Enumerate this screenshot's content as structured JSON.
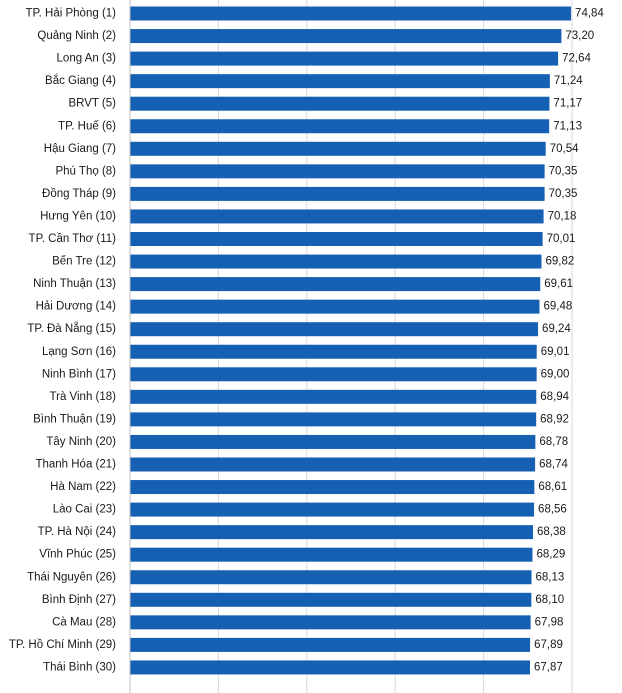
{
  "chart_data": {
    "type": "bar",
    "orientation": "horizontal",
    "bar_color": "#1660b4",
    "gridline_color": "#d9d9d9",
    "xlim": [
      0,
      80
    ],
    "grid": true,
    "categories": [
      "TP. Hải Phòng (1)",
      "Quảng Ninh (2)",
      "Long An (3)",
      "Bắc Giang (4)",
      "BRVT (5)",
      "TP. Huế (6)",
      "Hậu Giang (7)",
      "Phú Thọ (8)",
      "Đồng Tháp (9)",
      "Hưng Yên (10)",
      "TP. Cần Thơ (11)",
      "Bến Tre (12)",
      "Ninh Thuận (13)",
      "Hải Dương (14)",
      "TP. Đà Nẵng (15)",
      "Lạng Sơn (16)",
      "Ninh Bình (17)",
      "Trà Vinh (18)",
      "Bình Thuận (19)",
      "Tây Ninh (20)",
      "Thanh Hóa (21)",
      "Hà Nam (22)",
      "Lào Cai (23)",
      "TP. Hà Nội (24)",
      "Vĩnh Phúc (25)",
      "Thái Nguyên (26)",
      "Bình Định (27)",
      "Cà Mau (28)",
      "TP. Hồ Chí Minh (29)",
      "Thái Bình (30)"
    ],
    "values": [
      74.84,
      73.2,
      72.64,
      71.24,
      71.17,
      71.13,
      70.54,
      70.35,
      70.35,
      70.18,
      70.01,
      69.82,
      69.61,
      69.48,
      69.24,
      69.01,
      69.0,
      68.94,
      68.92,
      68.78,
      68.74,
      68.61,
      68.56,
      68.38,
      68.29,
      68.13,
      68.1,
      67.98,
      67.89,
      67.87
    ],
    "value_labels": [
      "74,84",
      "73,20",
      "72,64",
      "71,24",
      "71,17",
      "71,13",
      "70,54",
      "70,35",
      "70,35",
      "70,18",
      "70,01",
      "69,82",
      "69,61",
      "69,48",
      "69,24",
      "69,01",
      "69,00",
      "68,94",
      "68,92",
      "68,78",
      "68,74",
      "68,61",
      "68,56",
      "68,38",
      "68,29",
      "68,13",
      "68,10",
      "67,98",
      "67,89",
      "67,87"
    ]
  }
}
